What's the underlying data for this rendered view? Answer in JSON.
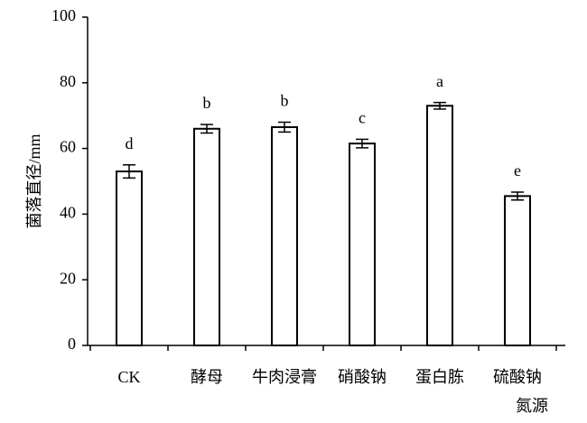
{
  "chart_data": {
    "type": "bar",
    "ylabel": "菌落直径/mm",
    "xlabel": "氮源",
    "categories": [
      "CK",
      "酵母",
      "牛肉浸膏",
      "硝酸钠",
      "蛋白胨",
      "硫酸钠"
    ],
    "values": [
      53,
      66,
      66.5,
      61.5,
      73,
      45.5
    ],
    "errors": [
      2,
      1.3,
      1.5,
      1.3,
      1,
      1.2
    ],
    "significance_letters": [
      "d",
      "b",
      "b",
      "c",
      "a",
      "e"
    ],
    "color": "#ffffff",
    "ylim": [
      0,
      100
    ],
    "yticks": [
      0,
      20,
      40,
      60,
      80,
      100
    ],
    "grid": false
  }
}
